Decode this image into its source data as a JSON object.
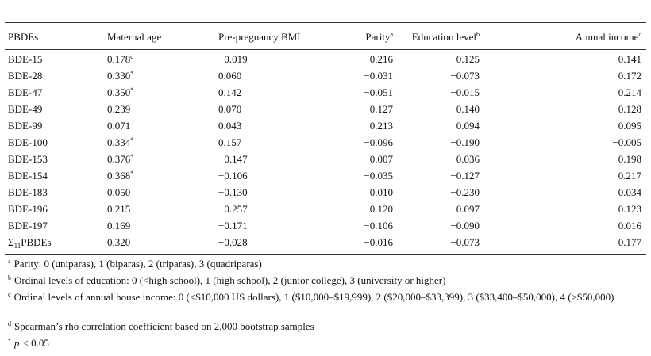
{
  "table": {
    "header": [
      "PBDEs",
      "Maternal age",
      "Pre-pregnancy BMI",
      {
        "text": "Parity",
        "sup": "a"
      },
      {
        "text": "Education level",
        "sup": "b"
      },
      {
        "text": "Annual income",
        "sup": "c"
      }
    ],
    "rows": [
      [
        "BDE-15",
        {
          "text": "0.178",
          "sup": "d"
        },
        "−0.019",
        "0.216",
        "−0.125",
        "0.141"
      ],
      [
        "BDE-28",
        {
          "text": "0.330",
          "sup": "*"
        },
        "0.060",
        "−0.031",
        "−0.073",
        "0.172"
      ],
      [
        "BDE-47",
        {
          "text": "0.350",
          "sup": "*"
        },
        "0.142",
        "−0.051",
        "−0.015",
        "0.214"
      ],
      [
        "BDE-49",
        "0.239",
        "0.070",
        "0.127",
        "−0.140",
        "0.128"
      ],
      [
        "BDE-99",
        "0.071",
        "0.043",
        "0.213",
        "0.094",
        "0.095"
      ],
      [
        "BDE-100",
        {
          "text": "0.334",
          "sup": "*"
        },
        "0.157",
        "−0.096",
        "−0.190",
        "−0.005"
      ],
      [
        "BDE-153",
        {
          "text": "0.376",
          "sup": "*"
        },
        "−0.147",
        "0.007",
        "−0.036",
        "0.198"
      ],
      [
        "BDE-154",
        {
          "text": "0.368",
          "sup": "*"
        },
        "−0.106",
        "−0.035",
        "−0.127",
        "0.217"
      ],
      [
        "BDE-183",
        "0.050",
        "−0.130",
        "0.010",
        "−0.230",
        "0.034"
      ],
      [
        "BDE-196",
        "0.215",
        "−0.257",
        "0.120",
        "−0.097",
        "0.123"
      ],
      [
        "BDE-197",
        "0.169",
        "−0.171",
        "−0.106",
        "−0.090",
        "0.016"
      ],
      [
        {
          "pre": "Σ",
          "sub": "11",
          "post": "PBDEs"
        },
        "0.320",
        "−0.028",
        "−0.016",
        "−0.073",
        "0.177"
      ]
    ]
  },
  "footnotes": [
    {
      "mark": "a",
      "text": "Parity: 0 (uniparas), 1 (biparas), 2 (triparas), 3 (quadriparas)"
    },
    {
      "mark": "b",
      "text": "Ordinal levels of education: 0 (<high school), 1 (high school), 2 (junior college), 3 (university or higher)"
    },
    {
      "mark": "c",
      "text": "Ordinal levels of annual house income: 0 (<$10,000 US dollars), 1 ($10,000–$19,999), 2 ($20,000–$33,399), 3 ($33,400–$50,000), 4 (>$50,000)"
    },
    {
      "mark": "d",
      "text": "Spearman’s rho correlation coefficient based on 2,000 bootstrap samples"
    },
    {
      "mark": "*",
      "var": "p",
      "text": "< 0.05"
    }
  ]
}
